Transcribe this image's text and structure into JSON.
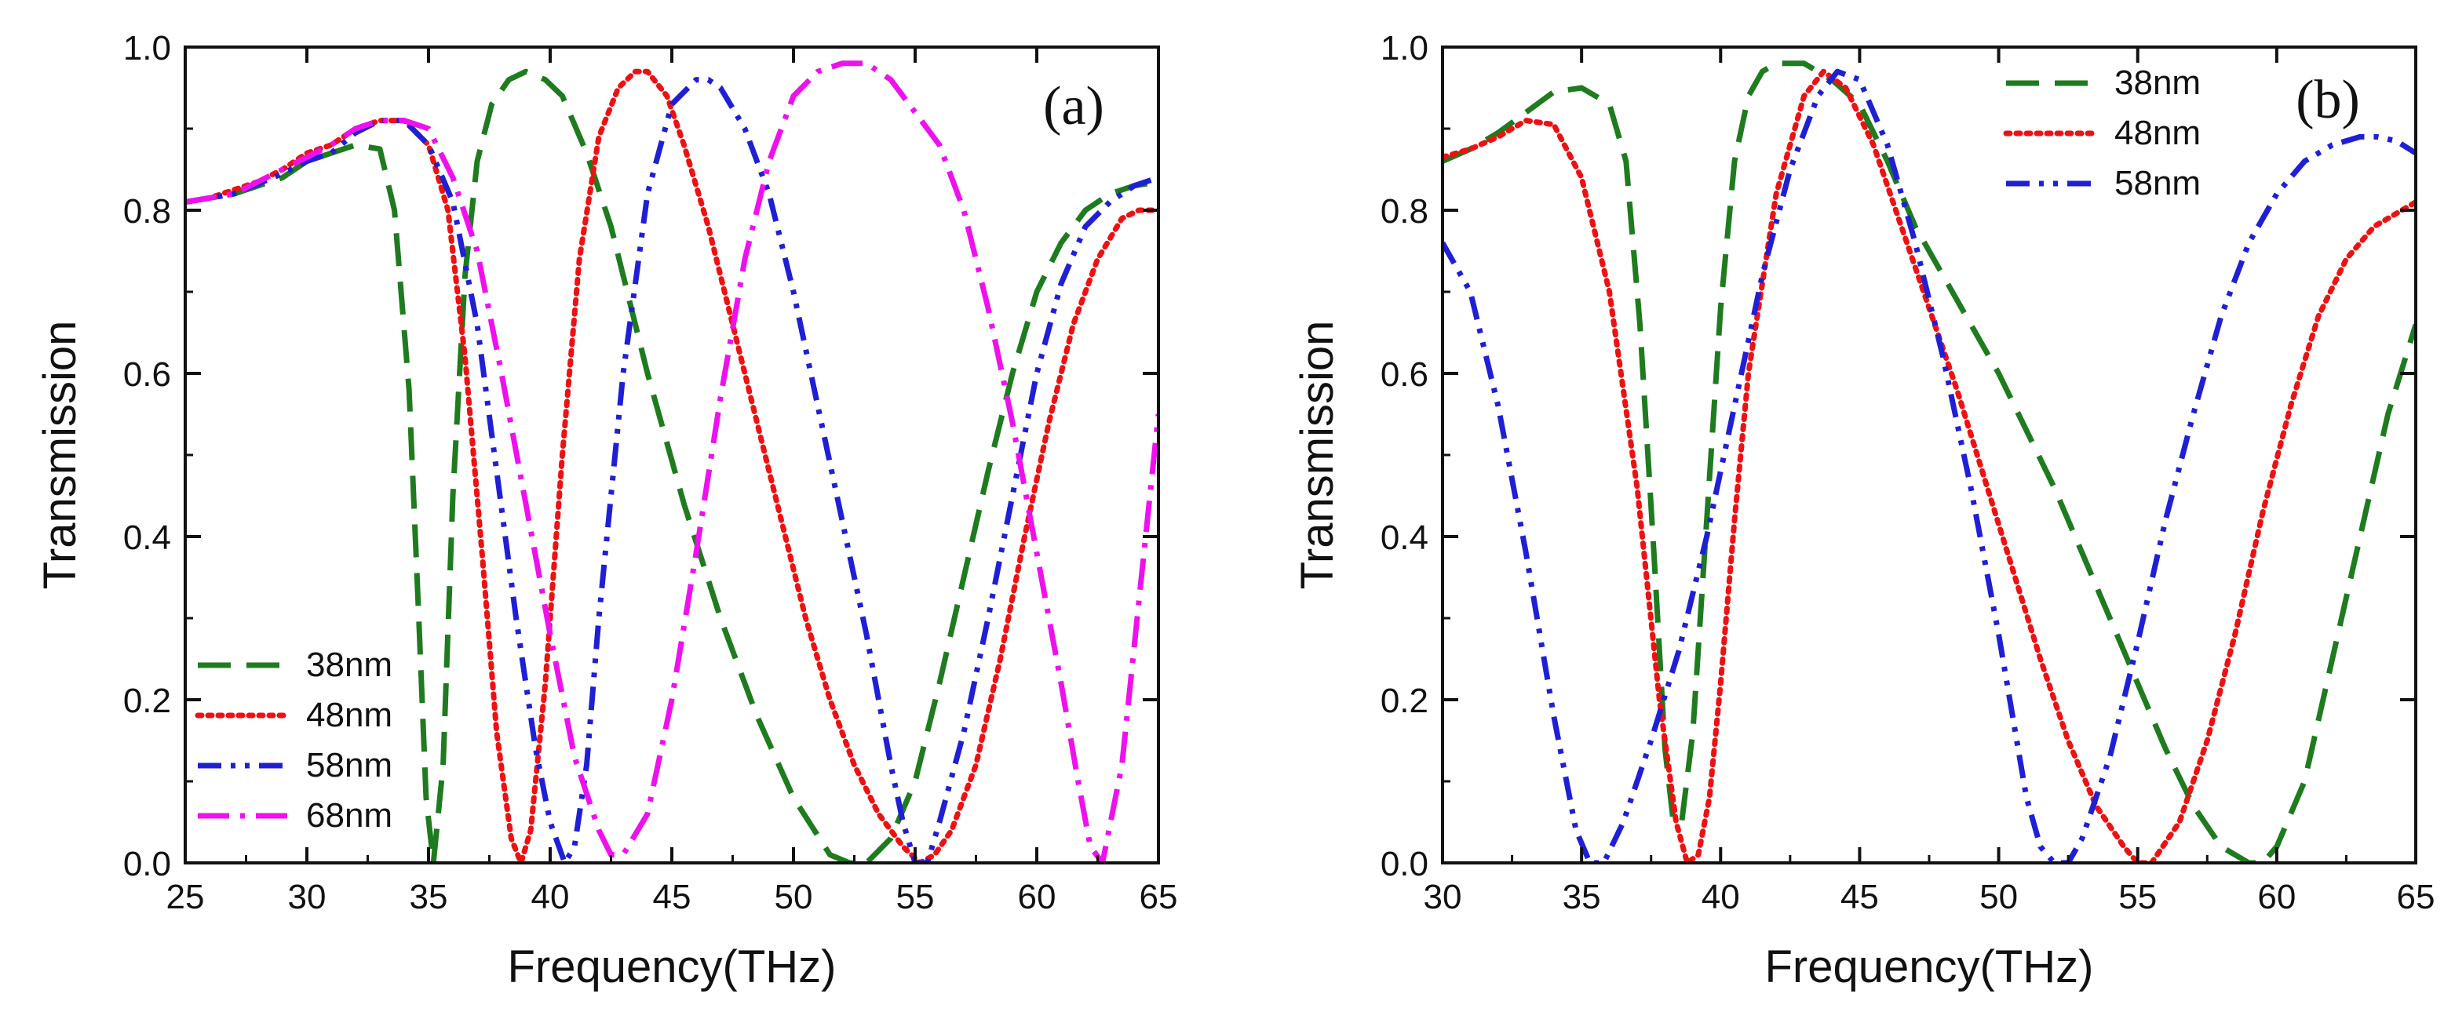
{
  "chart_data": [
    {
      "type": "line",
      "panel_label": "(a)",
      "xlabel": "Frequency(THz)",
      "ylabel": "Transmission",
      "xlim": [
        25,
        65
      ],
      "ylim": [
        0.0,
        1.0
      ],
      "xticks": [
        "25",
        "30",
        "35",
        "40",
        "45",
        "50",
        "55",
        "60",
        "65"
      ],
      "yticks": [
        "0.0",
        "0.2",
        "0.4",
        "0.6",
        "0.8",
        "1.0"
      ],
      "grid": false,
      "legend_position": "bottom-left",
      "series": [
        {
          "name": "38nm",
          "color": "#1e7b1e",
          "style": "dash",
          "x": [
            25,
            26,
            27,
            28,
            29,
            30,
            31,
            32,
            33,
            33.6,
            34.2,
            34.6,
            34.9,
            35.2,
            35.6,
            36,
            36.5,
            37,
            37.6,
            38.3,
            39,
            39.8,
            40.5,
            41.5,
            42.5,
            44,
            45.5,
            47,
            48.5,
            50,
            51.5,
            52.3,
            53,
            54,
            55,
            56,
            57,
            58,
            59,
            60,
            61,
            62,
            63,
            64,
            65
          ],
          "y": [
            0.81,
            0.815,
            0.82,
            0.83,
            0.84,
            0.86,
            0.87,
            0.88,
            0.875,
            0.8,
            0.58,
            0.3,
            0.08,
            0.0,
            0.12,
            0.45,
            0.72,
            0.86,
            0.93,
            0.96,
            0.97,
            0.96,
            0.94,
            0.87,
            0.78,
            0.6,
            0.44,
            0.3,
            0.18,
            0.08,
            0.01,
            0.0,
            0.0,
            0.03,
            0.1,
            0.22,
            0.35,
            0.48,
            0.6,
            0.7,
            0.76,
            0.8,
            0.82,
            0.83,
            0.835
          ]
        },
        {
          "name": "48nm",
          "color": "#ee1111",
          "style": "dot",
          "x": [
            25,
            26,
            27,
            28,
            29,
            30,
            31,
            32,
            33,
            34,
            35,
            35.8,
            36.5,
            37.2,
            37.8,
            38.4,
            38.8,
            39.2,
            39.8,
            40.5,
            41.2,
            42,
            42.8,
            43.5,
            44,
            44.8,
            45.5,
            46.5,
            47.5,
            48.5,
            49.5,
            50.5,
            51.5,
            52.5,
            53.5,
            54.5,
            55.2,
            55.8,
            56.5,
            57.5,
            58.5,
            59.5,
            60.5,
            61.5,
            62.5,
            63.5,
            64.2,
            65
          ],
          "y": [
            0.81,
            0.815,
            0.825,
            0.835,
            0.85,
            0.87,
            0.88,
            0.9,
            0.91,
            0.91,
            0.88,
            0.8,
            0.62,
            0.38,
            0.16,
            0.03,
            0.0,
            0.04,
            0.22,
            0.5,
            0.74,
            0.89,
            0.95,
            0.97,
            0.97,
            0.94,
            0.88,
            0.78,
            0.66,
            0.54,
            0.42,
            0.3,
            0.2,
            0.12,
            0.06,
            0.02,
            0.0,
            0.01,
            0.04,
            0.12,
            0.25,
            0.4,
            0.54,
            0.66,
            0.74,
            0.79,
            0.8,
            0.8
          ]
        },
        {
          "name": "58nm",
          "color": "#1f1fd6",
          "style": "dash-dot-dot",
          "x": [
            25,
            27,
            29,
            30,
            31,
            32,
            33,
            34,
            35,
            36,
            37,
            37.8,
            38.6,
            39.4,
            40,
            40.6,
            41,
            41.5,
            42,
            43,
            44,
            45,
            46,
            46.5,
            47,
            48,
            49,
            50,
            51,
            52,
            53,
            53.5,
            54,
            54.5,
            55,
            55.5,
            56,
            57,
            58,
            59,
            60,
            61,
            62,
            63,
            64,
            65
          ],
          "y": [
            0.81,
            0.82,
            0.845,
            0.86,
            0.87,
            0.895,
            0.91,
            0.91,
            0.88,
            0.81,
            0.66,
            0.48,
            0.3,
            0.14,
            0.05,
            0.0,
            0.02,
            0.12,
            0.3,
            0.6,
            0.82,
            0.93,
            0.96,
            0.96,
            0.95,
            0.9,
            0.82,
            0.7,
            0.56,
            0.42,
            0.28,
            0.2,
            0.12,
            0.05,
            0.0,
            0.0,
            0.05,
            0.16,
            0.3,
            0.45,
            0.6,
            0.71,
            0.78,
            0.81,
            0.83,
            0.84
          ]
        },
        {
          "name": "68nm",
          "color": "#ee11ee",
          "style": "dash-dot",
          "x": [
            25,
            27,
            29,
            31,
            32,
            33,
            34,
            35,
            36,
            37,
            38,
            39,
            40,
            41,
            42,
            42.5,
            43,
            44,
            45,
            46,
            47,
            48,
            49,
            50,
            51,
            52,
            53,
            54,
            55,
            56,
            57,
            58,
            59,
            60,
            61,
            61.7,
            62.2,
            62.7,
            63.5,
            64.3,
            65
          ],
          "y": [
            0.81,
            0.82,
            0.85,
            0.88,
            0.9,
            0.91,
            0.91,
            0.9,
            0.84,
            0.75,
            0.6,
            0.44,
            0.28,
            0.13,
            0.04,
            0.01,
            0.01,
            0.06,
            0.2,
            0.38,
            0.57,
            0.74,
            0.86,
            0.94,
            0.97,
            0.98,
            0.98,
            0.96,
            0.92,
            0.88,
            0.8,
            0.68,
            0.54,
            0.38,
            0.22,
            0.1,
            0.02,
            0.0,
            0.12,
            0.35,
            0.55
          ]
        }
      ]
    },
    {
      "type": "line",
      "panel_label": "(b)",
      "xlabel": "Frequency(THz)",
      "ylabel": "Transmission",
      "xlim": [
        30,
        65
      ],
      "ylim": [
        0.0,
        1.0
      ],
      "xticks": [
        "30",
        "35",
        "40",
        "45",
        "50",
        "55",
        "60",
        "65"
      ],
      "yticks": [
        "0.0",
        "0.2",
        "0.4",
        "0.6",
        "0.8",
        "1.0"
      ],
      "grid": false,
      "legend_position": "top-right",
      "series": [
        {
          "name": "38nm",
          "color": "#1e7b1e",
          "style": "dash",
          "x": [
            30,
            31,
            32,
            33,
            34,
            35,
            36,
            36.6,
            37.1,
            37.6,
            38,
            38.3,
            38.6,
            39,
            39.5,
            40,
            40.5,
            41,
            41.5,
            42,
            43,
            44,
            45,
            46,
            47,
            48,
            49,
            50,
            51,
            52,
            53,
            54,
            55,
            56,
            57,
            58,
            59,
            59.5,
            60,
            61,
            62,
            63,
            64,
            65
          ],
          "y": [
            0.86,
            0.875,
            0.895,
            0.92,
            0.945,
            0.95,
            0.93,
            0.86,
            0.66,
            0.38,
            0.14,
            0.05,
            0.05,
            0.16,
            0.42,
            0.68,
            0.86,
            0.94,
            0.97,
            0.98,
            0.98,
            0.96,
            0.93,
            0.86,
            0.78,
            0.72,
            0.66,
            0.6,
            0.53,
            0.46,
            0.38,
            0.3,
            0.22,
            0.14,
            0.07,
            0.02,
            0.0,
            0.0,
            0.02,
            0.1,
            0.25,
            0.4,
            0.55,
            0.66
          ]
        },
        {
          "name": "48nm",
          "color": "#ee1111",
          "style": "dot",
          "x": [
            30,
            31,
            32,
            33,
            34,
            35,
            36,
            37,
            37.8,
            38.4,
            38.8,
            39.2,
            39.6,
            40,
            40.5,
            41,
            42,
            43,
            43.7,
            44.5,
            45.5,
            46.5,
            47.5,
            48.5,
            49.5,
            50.5,
            51.5,
            52.5,
            53.5,
            54.5,
            55,
            55.5,
            56.5,
            57.5,
            58.5,
            59.5,
            60.5,
            61.5,
            62.5,
            63.5,
            64.5,
            65
          ],
          "y": [
            0.865,
            0.875,
            0.89,
            0.91,
            0.905,
            0.84,
            0.7,
            0.46,
            0.2,
            0.05,
            0.0,
            0.01,
            0.08,
            0.22,
            0.42,
            0.6,
            0.82,
            0.94,
            0.97,
            0.95,
            0.88,
            0.78,
            0.68,
            0.58,
            0.47,
            0.36,
            0.25,
            0.15,
            0.07,
            0.02,
            0.0,
            0.0,
            0.05,
            0.15,
            0.28,
            0.43,
            0.56,
            0.67,
            0.74,
            0.78,
            0.8,
            0.81
          ]
        },
        {
          "name": "58nm",
          "color": "#1f1fd6",
          "style": "dash-dot-dot",
          "x": [
            30,
            31,
            32,
            33,
            34,
            34.8,
            35.3,
            35.8,
            36.5,
            37.5,
            38.5,
            39.5,
            40.5,
            41.5,
            42.5,
            43.5,
            44.2,
            45,
            46,
            47,
            48,
            49,
            50,
            50.5,
            51,
            51.5,
            52,
            52.5,
            53,
            54,
            55,
            56,
            57,
            58,
            59,
            60,
            61,
            62,
            63,
            63.6,
            64.3,
            65
          ],
          "y": [
            0.76,
            0.7,
            0.56,
            0.38,
            0.18,
            0.04,
            0.0,
            0.0,
            0.05,
            0.15,
            0.26,
            0.4,
            0.56,
            0.72,
            0.85,
            0.94,
            0.97,
            0.96,
            0.88,
            0.76,
            0.62,
            0.46,
            0.28,
            0.18,
            0.08,
            0.02,
            0.0,
            0.0,
            0.03,
            0.13,
            0.27,
            0.42,
            0.55,
            0.67,
            0.76,
            0.82,
            0.86,
            0.88,
            0.89,
            0.89,
            0.885,
            0.87
          ]
        }
      ]
    }
  ]
}
